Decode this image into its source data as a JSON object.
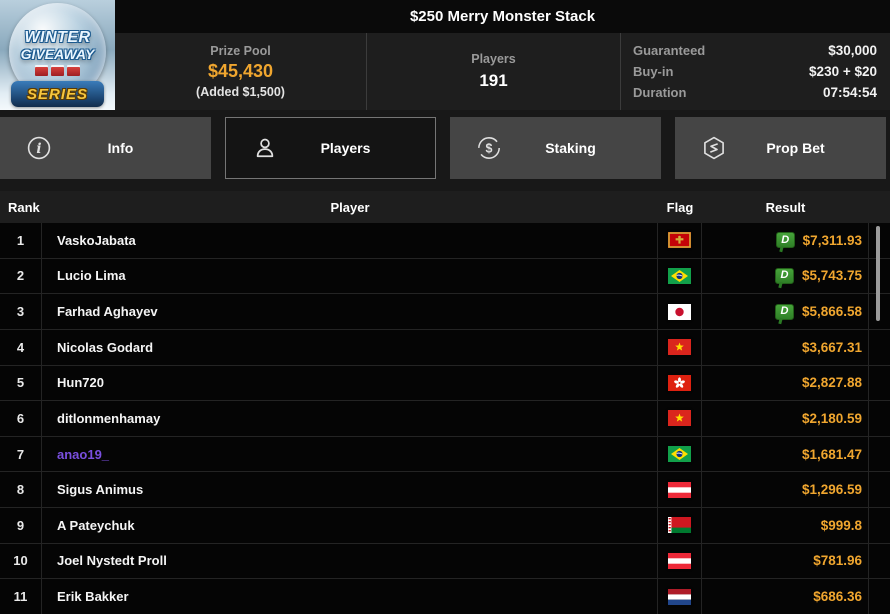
{
  "colors": {
    "gold": "#F0A62F",
    "purple": "#7A4FE0",
    "badge_green": "#2F8F27"
  },
  "header": {
    "title": "$250 Merry Monster Stack",
    "logo": {
      "line1": "WINTER",
      "line2": "GIVEAWAY",
      "line3": "SERIES"
    },
    "prize_pool": {
      "label": "Prize Pool",
      "value": "$45,430",
      "added": "(Added $1,500)"
    },
    "players": {
      "label": "Players",
      "value": "191"
    },
    "details": [
      {
        "label": "Guaranteed",
        "value": "$30,000"
      },
      {
        "label": "Buy-in",
        "value": "$230 + $20"
      },
      {
        "label": "Duration",
        "value": "07:54:54"
      }
    ]
  },
  "tabs": [
    {
      "label": "Info",
      "icon": "info-icon",
      "active": false
    },
    {
      "label": "Players",
      "icon": "players-icon",
      "active": true
    },
    {
      "label": "Staking",
      "icon": "staking-icon",
      "active": false
    },
    {
      "label": "Prop Bet",
      "icon": "prop-bet-icon",
      "active": false
    }
  ],
  "table": {
    "columns": [
      "Rank",
      "Player",
      "Flag",
      "Result"
    ],
    "rows": [
      {
        "rank": "1",
        "player": "VaskoJabata",
        "flag": "montenegro",
        "result": "$7,311.93",
        "badge": true,
        "highlight": false
      },
      {
        "rank": "2",
        "player": "Lucio Lima",
        "flag": "brazil",
        "result": "$5,743.75",
        "badge": true,
        "highlight": false
      },
      {
        "rank": "3",
        "player": "Farhad Aghayev",
        "flag": "japan",
        "result": "$5,866.58",
        "badge": true,
        "highlight": false
      },
      {
        "rank": "4",
        "player": "Nicolas Godard",
        "flag": "vietnam",
        "result": "$3,667.31",
        "badge": false,
        "highlight": false
      },
      {
        "rank": "5",
        "player": "Hun720",
        "flag": "hong-kong",
        "result": "$2,827.88",
        "badge": false,
        "highlight": false
      },
      {
        "rank": "6",
        "player": "ditlonmenhamay",
        "flag": "vietnam",
        "result": "$2,180.59",
        "badge": false,
        "highlight": false
      },
      {
        "rank": "7",
        "player": "anao19_",
        "flag": "brazil",
        "result": "$1,681.47",
        "badge": false,
        "highlight": true
      },
      {
        "rank": "8",
        "player": "Sigus Animus",
        "flag": "austria",
        "result": "$1,296.59",
        "badge": false,
        "highlight": false
      },
      {
        "rank": "9",
        "player": "A Pateychuk",
        "flag": "belarus",
        "result": "$999.8",
        "badge": false,
        "highlight": false
      },
      {
        "rank": "10",
        "player": "Joel Nystedt Proll",
        "flag": "austria",
        "result": "$781.96",
        "badge": false,
        "highlight": false
      },
      {
        "rank": "11",
        "player": "Erik Bakker",
        "flag": "netherlands",
        "result": "$686.36",
        "badge": false,
        "highlight": false
      }
    ]
  }
}
